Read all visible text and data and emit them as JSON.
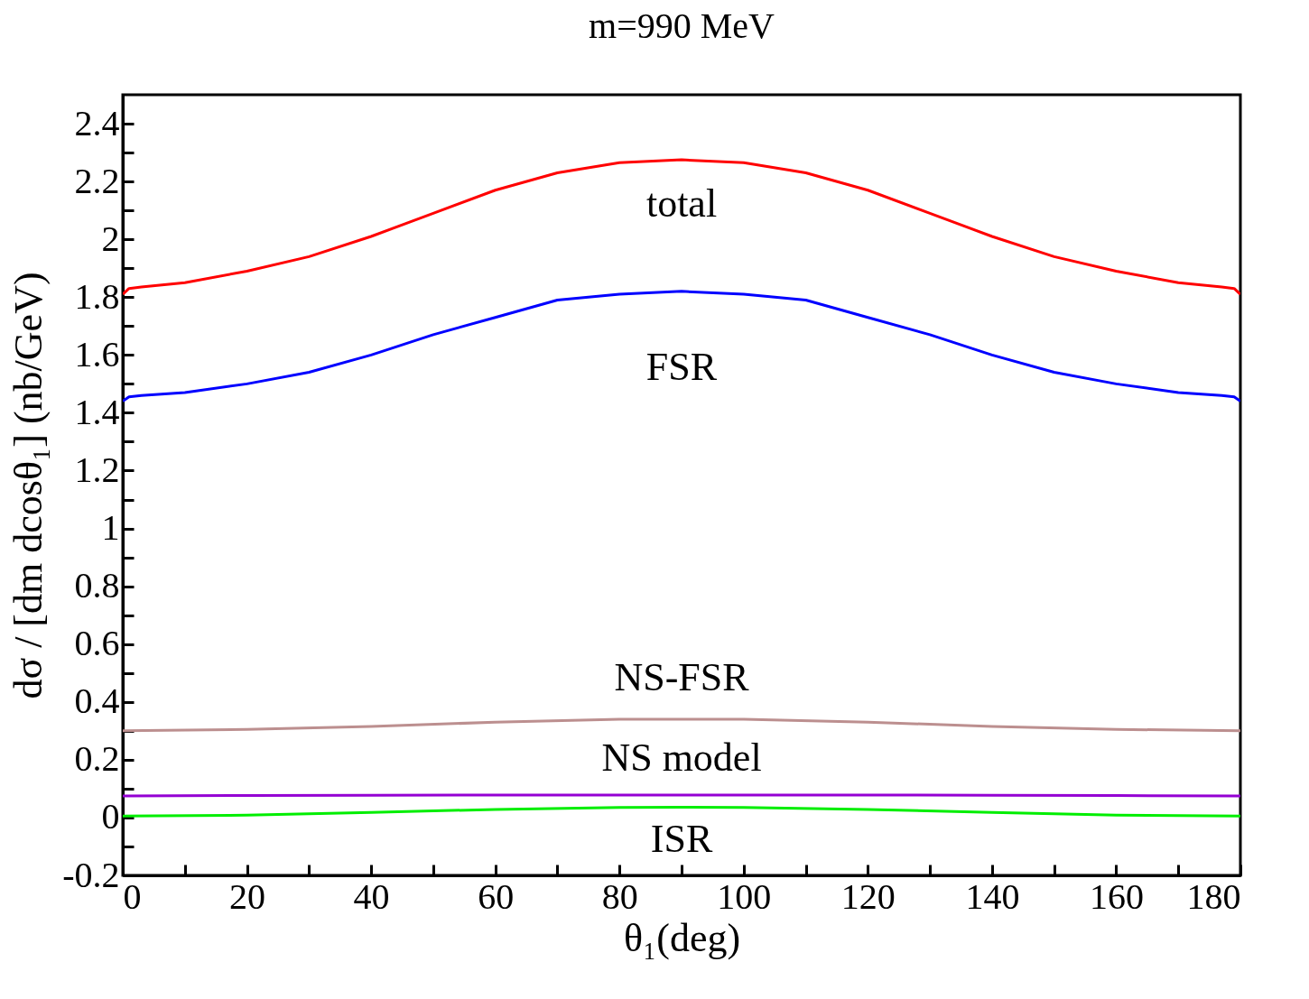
{
  "chart_data": {
    "type": "line",
    "title": "m=990 MeV",
    "xlabel": "θ₁(deg)",
    "ylabel": "dσ / [dm dcosθ₁]  (nb/GeV)",
    "xlim": [
      0,
      180
    ],
    "ylim": [
      -0.2,
      2.5
    ],
    "xticks": [
      0,
      {
        "value": 10,
        "label": null
      },
      20,
      {
        "value": 30,
        "label": null
      },
      40,
      {
        "value": 50,
        "label": null
      },
      60,
      {
        "value": 70,
        "label": null
      },
      80,
      {
        "value": 90,
        "label": null
      },
      100,
      {
        "value": 110,
        "label": null
      },
      120,
      {
        "value": 130,
        "label": null
      },
      140,
      {
        "value": 150,
        "label": null
      },
      160,
      {
        "value": 170,
        "label": null
      },
      180
    ],
    "yticks": [
      -0.2,
      {
        "value": -0.1,
        "label": null
      },
      0,
      {
        "value": 0.1,
        "label": null
      },
      0.2,
      {
        "value": 0.3,
        "label": null
      },
      0.4,
      {
        "value": 0.5,
        "label": null
      },
      0.6,
      {
        "value": 0.7,
        "label": null
      },
      0.8,
      {
        "value": 0.9,
        "label": null
      },
      1,
      {
        "value": 1.1,
        "label": null
      },
      1.2,
      {
        "value": 1.3,
        "label": null
      },
      1.4,
      {
        "value": 1.5,
        "label": null
      },
      1.6,
      {
        "value": 1.7,
        "label": null
      },
      1.8,
      {
        "value": 1.9,
        "label": null
      },
      2,
      {
        "value": 2.1,
        "label": null
      },
      2.2,
      {
        "value": 2.3,
        "label": null
      },
      2.4
    ],
    "x": [
      0,
      1,
      3,
      10,
      20,
      30,
      40,
      50,
      60,
      70,
      80,
      90,
      100,
      110,
      120,
      130,
      140,
      150,
      160,
      170,
      177,
      179,
      180
    ],
    "series": [
      {
        "name": "total",
        "color": "#ff0000",
        "values": [
          1.81,
          1.83,
          1.835,
          1.85,
          1.89,
          1.94,
          2.01,
          2.09,
          2.17,
          2.23,
          2.265,
          2.275,
          2.265,
          2.23,
          2.17,
          2.09,
          2.01,
          1.94,
          1.89,
          1.85,
          1.835,
          1.83,
          1.81
        ]
      },
      {
        "name": "FSR",
        "color": "#0000ff",
        "values": [
          1.44,
          1.455,
          1.46,
          1.47,
          1.5,
          1.54,
          1.6,
          1.67,
          1.73,
          1.79,
          1.81,
          1.82,
          1.81,
          1.79,
          1.73,
          1.67,
          1.6,
          1.54,
          1.5,
          1.47,
          1.46,
          1.455,
          1.44
        ]
      },
      {
        "name": "NS-FSR",
        "color": "#bc8f8f",
        "x": [
          0,
          20,
          40,
          60,
          80,
          90,
          100,
          120,
          140,
          160,
          180
        ],
        "values": [
          0.3,
          0.305,
          0.315,
          0.33,
          0.34,
          0.34,
          0.34,
          0.33,
          0.315,
          0.305,
          0.3
        ]
      },
      {
        "name": "NS model",
        "color": "#9400d3",
        "x": [
          0,
          20,
          40,
          60,
          80,
          90,
          100,
          120,
          140,
          160,
          180
        ],
        "values": [
          0.075,
          0.076,
          0.077,
          0.078,
          0.078,
          0.078,
          0.078,
          0.078,
          0.077,
          0.076,
          0.075
        ]
      },
      {
        "name": "ISR",
        "color": "#00ee00",
        "x": [
          0,
          20,
          40,
          60,
          80,
          90,
          100,
          120,
          140,
          160,
          180
        ],
        "values": [
          0.005,
          0.008,
          0.018,
          0.028,
          0.035,
          0.036,
          0.035,
          0.028,
          0.018,
          0.008,
          0.005
        ]
      }
    ]
  }
}
